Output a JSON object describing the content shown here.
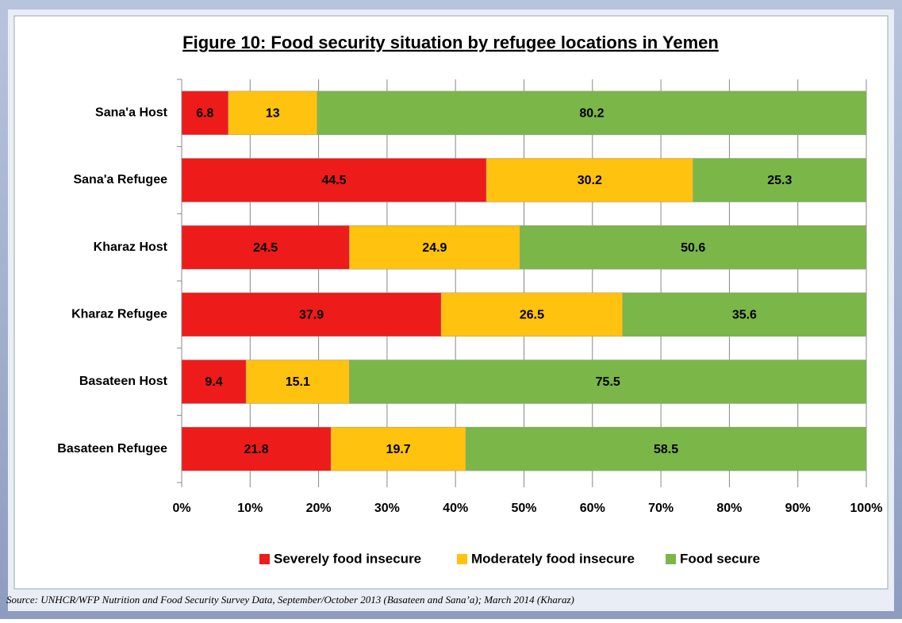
{
  "chart_data": {
    "type": "stacked_barh",
    "title": "Figure 10: Food security situation by refugee locations in Yemen",
    "categories": [
      "Sana'a Host",
      "Sana'a Refugee",
      "Kharaz Host",
      "Kharaz Refugee",
      "Basateen Host",
      "Basateen Refugee"
    ],
    "series": [
      {
        "name": "Severely food insecure",
        "color": "#ee1b1b",
        "values": [
          6.8,
          44.5,
          24.5,
          37.9,
          9.4,
          21.8
        ]
      },
      {
        "name": "Moderately food insecure",
        "color": "#ffc20e",
        "values": [
          13,
          30.2,
          24.9,
          26.5,
          15.1,
          19.7
        ]
      },
      {
        "name": "Food secure",
        "color": "#7ab648",
        "values": [
          80.2,
          25.3,
          50.6,
          35.6,
          75.5,
          58.5
        ]
      }
    ],
    "xlim": [
      0,
      100
    ],
    "xticks": [
      {
        "value": 0,
        "label": "0%"
      },
      {
        "value": 10,
        "label": "10%"
      },
      {
        "value": 20,
        "label": "20%"
      },
      {
        "value": 30,
        "label": "30%"
      },
      {
        "value": 40,
        "label": "40%"
      },
      {
        "value": 50,
        "label": "50%"
      },
      {
        "value": 60,
        "label": "60%"
      },
      {
        "value": 70,
        "label": "70%"
      },
      {
        "value": 80,
        "label": "80%"
      },
      {
        "value": 90,
        "label": "90%"
      },
      {
        "value": 100,
        "label": "100%"
      }
    ],
    "grid": true,
    "legend": "bottom",
    "source": "Source: UNHCR/WFP Nutrition and Food Security Survey Data, September/October 2013 (Basateen and Sana’a); March 2014 (Kharaz)"
  }
}
